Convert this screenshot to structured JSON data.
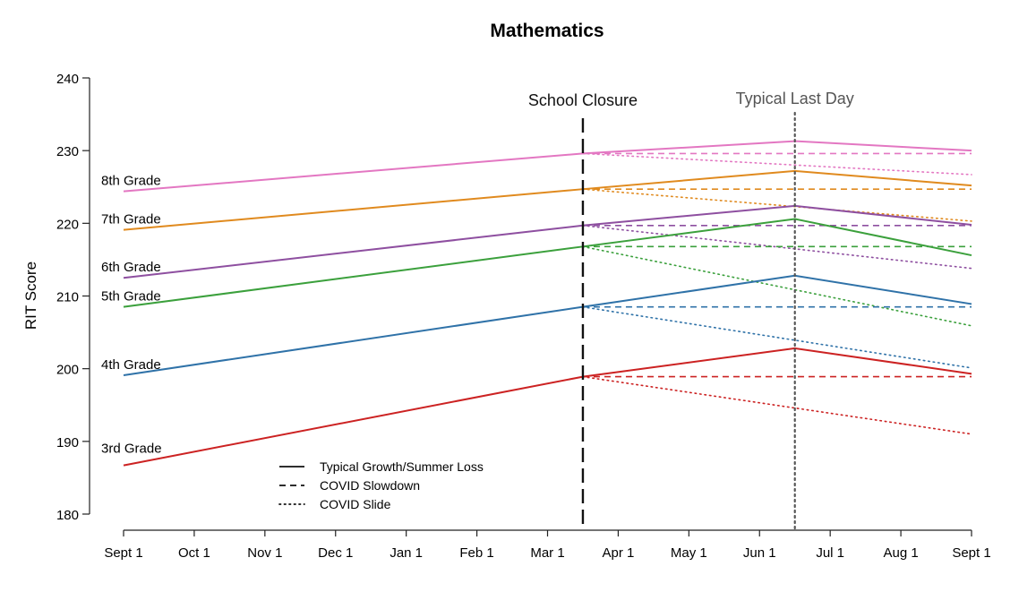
{
  "chart_data": {
    "type": "line",
    "title": "Mathematics",
    "xlabel": "",
    "ylabel": "RIT Score",
    "x_ticks": [
      "Sept 1",
      "Oct 1",
      "Nov 1",
      "Dec 1",
      "Jan 1",
      "Feb 1",
      "Mar 1",
      "Apr 1",
      "May 1",
      "Jun 1",
      "Jul 1",
      "Aug 1",
      "Sept 1"
    ],
    "y_ticks": [
      180,
      190,
      200,
      210,
      220,
      230,
      240
    ],
    "ylim": [
      180,
      240
    ],
    "xlim": [
      0,
      12
    ],
    "closure_x": 6.5,
    "last_day_x": 9.5,
    "end_x": 12,
    "annotations": {
      "closure": "School Closure",
      "last_day": "Typical Last Day"
    },
    "legend": [
      {
        "label": "Typical Growth/Summer Loss",
        "style": "solid"
      },
      {
        "label": "COVID Slowdown",
        "style": "dashed"
      },
      {
        "label": "COVID Slide",
        "style": "dotted"
      }
    ],
    "series": [
      {
        "name": "8th Grade",
        "color": "#e377c2",
        "start": 224.4,
        "closure": 229.6,
        "typical_last_day": 231.3,
        "typical_end": 230.0,
        "slowdown_end": 229.6,
        "slide_end": 226.7
      },
      {
        "name": "7th Grade",
        "color": "#e08a1e",
        "start": 219.1,
        "closure": 224.7,
        "typical_last_day": 227.2,
        "typical_end": 225.2,
        "slowdown_end": 224.7,
        "slide_end": 220.3
      },
      {
        "name": "6th Grade",
        "color": "#8e4fa0",
        "start": 212.5,
        "closure": 219.7,
        "typical_last_day": 222.4,
        "typical_end": 219.8,
        "slowdown_end": 219.7,
        "slide_end": 213.8
      },
      {
        "name": "5th Grade",
        "color": "#3ba03c",
        "start": 208.5,
        "closure": 216.8,
        "typical_last_day": 220.6,
        "typical_end": 215.6,
        "slowdown_end": 216.8,
        "slide_end": 205.9
      },
      {
        "name": "4th Grade",
        "color": "#2f72a8",
        "start": 199.1,
        "closure": 208.5,
        "typical_last_day": 212.8,
        "typical_end": 208.9,
        "slowdown_end": 208.5,
        "slide_end": 200.1
      },
      {
        "name": "3rd Grade",
        "color": "#cc2222",
        "start": 186.7,
        "closure": 198.9,
        "typical_last_day": 202.8,
        "typical_end": 199.3,
        "slowdown_end": 198.9,
        "slide_end": 191.0
      }
    ]
  }
}
